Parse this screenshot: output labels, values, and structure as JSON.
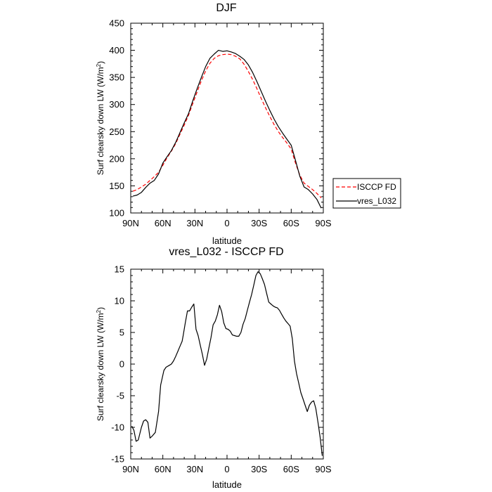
{
  "chart_data": [
    {
      "type": "line",
      "title": "DJF",
      "xlabel": "latitude",
      "ylabel": "Surf clearsky down LW (W/m",
      "ylabel_sup": "2",
      "ylabel_tail": ")",
      "xlim": [
        90,
        -90
      ],
      "ylim": [
        100,
        450
      ],
      "xticks": [
        90,
        60,
        30,
        0,
        -30,
        -60,
        -90
      ],
      "xticklabels": [
        "90N",
        "60N",
        "30N",
        "0",
        "30S",
        "60S",
        "90S"
      ],
      "yticks": [
        100,
        150,
        200,
        250,
        300,
        350,
        400,
        450
      ],
      "yticklabels": [
        "100",
        "150",
        "200",
        "250",
        "300",
        "350",
        "400",
        "450"
      ],
      "legend_position": "right",
      "series": [
        {
          "name": "ISCCP FD",
          "color": "#ff0000",
          "dash": "dashed",
          "x": [
            88,
            84,
            80,
            76,
            72,
            68,
            64,
            60,
            56,
            52,
            48,
            44,
            40,
            36,
            32,
            28,
            24,
            20,
            16,
            12,
            8,
            4,
            0,
            -4,
            -8,
            -12,
            -16,
            -20,
            -24,
            -28,
            -32,
            -36,
            -40,
            -44,
            -48,
            -52,
            -56,
            -60,
            -64,
            -68,
            -72,
            -76,
            -80,
            -84,
            -88
          ],
          "values": [
            140,
            143,
            148,
            153,
            160,
            167,
            175,
            188,
            202,
            214,
            228,
            245,
            262,
            280,
            302,
            323,
            344,
            362,
            376,
            385,
            390,
            392,
            393,
            392,
            389,
            384,
            374,
            361,
            346,
            329,
            311,
            294,
            278,
            263,
            250,
            239,
            229,
            218,
            192,
            170,
            155,
            149,
            143,
            136,
            128
          ]
        },
        {
          "name": "vres_L032",
          "color": "#000000",
          "dash": "solid",
          "x": [
            88,
            84,
            80,
            76,
            72,
            68,
            64,
            60,
            56,
            52,
            48,
            44,
            40,
            36,
            32,
            28,
            24,
            20,
            16,
            12,
            8,
            4,
            0,
            -4,
            -8,
            -12,
            -16,
            -20,
            -24,
            -28,
            -32,
            -36,
            -40,
            -44,
            -48,
            -52,
            -56,
            -60,
            -64,
            -68,
            -72,
            -76,
            -80,
            -84,
            -88
          ],
          "values": [
            131,
            133,
            138,
            147,
            155,
            160,
            172,
            192,
            204,
            215,
            230,
            248,
            266,
            283,
            307,
            329,
            350,
            370,
            385,
            393,
            400,
            398,
            399,
            397,
            394,
            389,
            383,
            373,
            359,
            342,
            324,
            306,
            289,
            273,
            259,
            247,
            236,
            225,
            197,
            168,
            148,
            143,
            135,
            125,
            109
          ]
        }
      ]
    },
    {
      "type": "line",
      "title": "vres_L032 - ISCCP FD",
      "xlabel": "latitude",
      "ylabel": "Surf clearsky down LW (W/m",
      "ylabel_sup": "2",
      "ylabel_tail": ")",
      "xlim": [
        90,
        -90
      ],
      "ylim": [
        -15,
        15
      ],
      "xticks": [
        90,
        60,
        30,
        0,
        -30,
        -60,
        -90
      ],
      "xticklabels": [
        "90N",
        "60N",
        "30N",
        "0",
        "30S",
        "60S",
        "90S"
      ],
      "yticks": [
        -15,
        -10,
        -5,
        0,
        5,
        10,
        15
      ],
      "yticklabels": [
        "-15",
        "-10",
        "-5",
        "0",
        "5",
        "10",
        "15"
      ],
      "series": [
        {
          "color": "#000000",
          "dash": "solid",
          "x": [
            89,
            87,
            85,
            83,
            80,
            78,
            76,
            74,
            72,
            70,
            67,
            64,
            62,
            59,
            57,
            54,
            52,
            50,
            48,
            46,
            44,
            42,
            41,
            39,
            37,
            35,
            33,
            31,
            29,
            27,
            25,
            23,
            21,
            19,
            17,
            15,
            13,
            11,
            9,
            7,
            5,
            3,
            1,
            -1,
            -3,
            -5,
            -7,
            -9,
            -11,
            -13,
            -15,
            -17,
            -19,
            -21,
            -23,
            -25,
            -27,
            -29,
            -31,
            -33,
            -35,
            -37,
            -39,
            -41,
            -43,
            -45,
            -47,
            -49,
            -51,
            -53,
            -55,
            -57,
            -59,
            -61,
            -63,
            -65,
            -67,
            -69,
            -71,
            -73,
            -75,
            -77,
            -79,
            -81,
            -83,
            -85,
            -87,
            -89
          ],
          "values": [
            -9.8,
            -10.5,
            -12.2,
            -12.0,
            -10.0,
            -9.0,
            -8.8,
            -9.2,
            -11.7,
            -11.4,
            -10.8,
            -7.5,
            -3.3,
            -1.0,
            -0.5,
            -0.2,
            0.0,
            0.5,
            1.2,
            2.0,
            2.8,
            3.6,
            4.5,
            6.5,
            8.4,
            8.4,
            9.0,
            9.5,
            5.5,
            4.5,
            3.0,
            1.5,
            -0.2,
            0.8,
            2.5,
            4.2,
            6.2,
            6.8,
            7.8,
            9.3,
            8.3,
            6.5,
            5.6,
            5.5,
            5.2,
            4.6,
            4.5,
            4.4,
            4.4,
            5.0,
            6.3,
            7.2,
            8.5,
            9.8,
            11.0,
            12.5,
            14.0,
            14.6,
            14.3,
            13.5,
            12.6,
            11.2,
            9.8,
            9.5,
            9.2,
            9.0,
            8.9,
            8.5,
            7.9,
            7.3,
            6.8,
            6.4,
            6.0,
            4.0,
            0.5,
            -1.5,
            -3.0,
            -4.5,
            -5.5,
            -6.5,
            -7.5,
            -6.5,
            -6.0,
            -5.8,
            -7.0,
            -9.2,
            -11.5,
            -14.5
          ]
        }
      ]
    }
  ]
}
